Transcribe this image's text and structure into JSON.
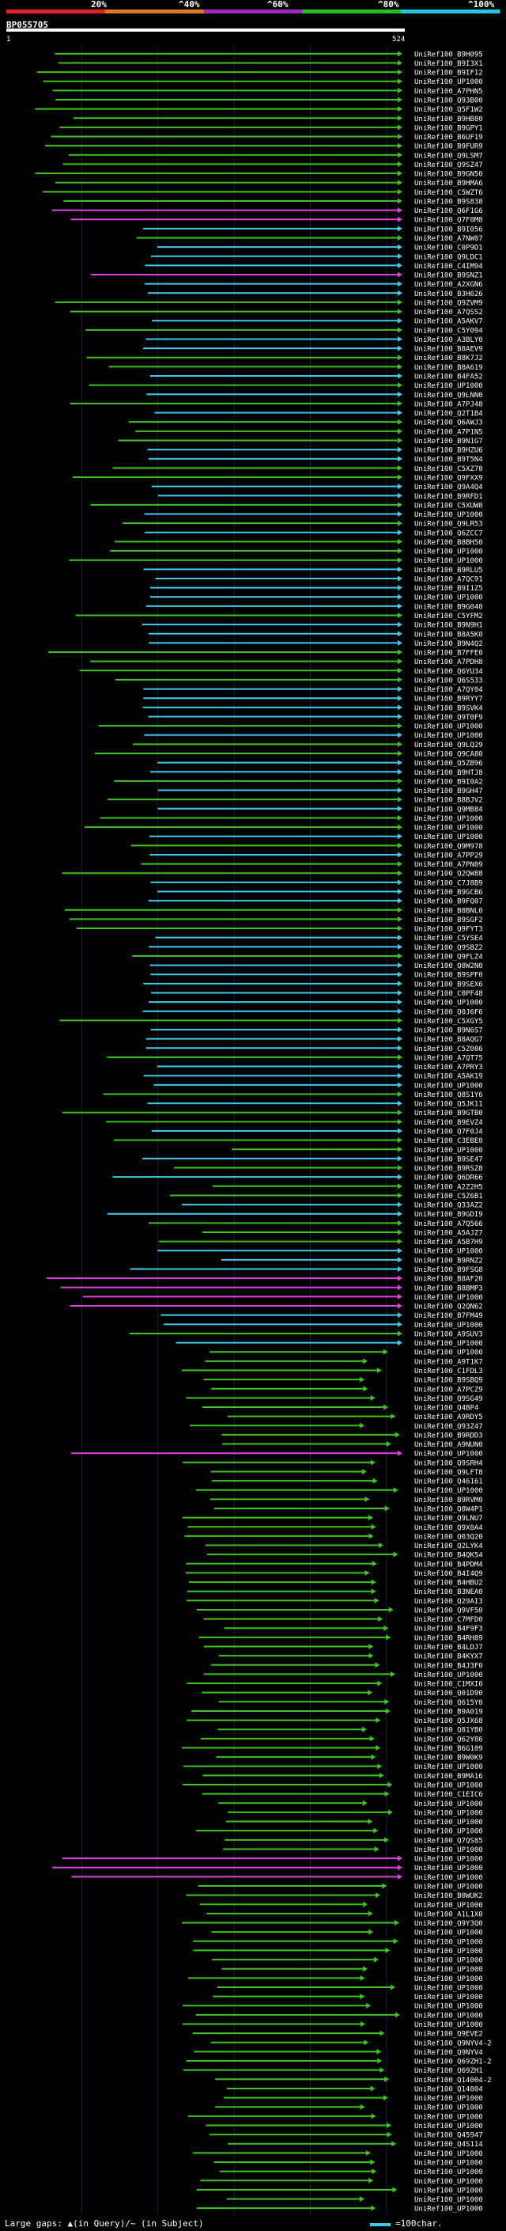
{
  "colors": {
    "background": "#000000",
    "grid": "#1a2040",
    "band_red": "#e8202a",
    "band_orange": "#e07a20",
    "band_purple": "#9a2ab8",
    "band_green": "#20c020",
    "band_cyan": "#20c8e0",
    "hit_green": "#3ec41e",
    "hit_cyan": "#3ccbe8",
    "hit_magenta": "#e040e0",
    "query_bar": "#ffffff",
    "text": "#ffffff"
  },
  "header": {
    "labels": [
      "20%",
      "^40%",
      "^60%",
      "^80%",
      "^100%"
    ],
    "query_id": "BP055705",
    "query_start": "1",
    "query_end": "524"
  },
  "legend": {
    "text": "Large gaps: ▲(in Query)/~ (in Subject)",
    "scale_label": "=100char."
  },
  "chart_data": {
    "type": "alignment-overview",
    "title": "BP055705",
    "x_range": [
      1,
      524
    ],
    "identity_bands": [
      "20%",
      "40%",
      "60%",
      "80%",
      "100%"
    ],
    "hit_labels": [
      "UniRef100_B9H095",
      "UniRef100_B9I3X1",
      "UniRef100_B9IF12",
      "UniRef100_UP1000",
      "UniRef100_A7PHN5",
      "UniRef100_Q93B00",
      "UniRef100_Q5F1W2",
      "UniRef100_B9HB80",
      "UniRef100_B9GPY1",
      "UniRef100_B6UF19",
      "UniRef100_B9FUR9",
      "UniRef100_Q9LSM7",
      "UniRef100_Q9SZ47",
      "UniRef100_B9GN50",
      "UniRef100_B9HMA6",
      "UniRef100_C5WZT6",
      "UniRef100_B9S838",
      "UniRef100_Q6F1G6",
      "UniRef100_Q7F0M8",
      "UniRef100_B9I056",
      "UniRef100_A7NW07",
      "UniRef100_C0P9D1",
      "UniRef100_Q9LDC1",
      "UniRef100_C4IM94",
      "UniRef100_B9SNZ1",
      "UniRef100_A2XGN6",
      "UniRef100_B3H626",
      "UniRef100_Q9ZVM9",
      "UniRef100_A7QSS2",
      "UniRef100_A5AKV7",
      "UniRef100_C5Y094",
      "UniRef100_A3BLY0",
      "UniRef100_B8AEV9",
      "UniRef100_B8K7J2",
      "UniRef100_B8A619",
      "UniRef100_B4FA52",
      "UniRef100_UP1000",
      "UniRef100_Q9LNN0",
      "UniRef100_A7PJ48",
      "UniRef100_Q2T1B4",
      "UniRef100_Q6AWJ3",
      "UniRef100_A7P1N5",
      "UniRef100_B9N1G7",
      "UniRef100_B9HZU6",
      "UniRef100_B9T5N4",
      "UniRef100_C5XZ78",
      "UniRef100_Q9FXX9",
      "UniRef100_Q9A4Q4",
      "UniRef100_B9RFD1",
      "UniRef100_C5XUW8",
      "UniRef100_UP1000",
      "UniRef100_Q9LR53",
      "UniRef100_Q6ZCC7",
      "UniRef100_B8BH50",
      "UniRef100_UP1000",
      "UniRef100_UP1000",
      "UniRef100_B9RLU5",
      "UniRef100_A7QC91",
      "UniRef100_B9I1Z5",
      "UniRef100_UP1000",
      "UniRef100_B9G040",
      "UniRef100_C5YFM2",
      "UniRef100_B9N9H1",
      "UniRef100_B8A5K0",
      "UniRef100_B9N4Q2",
      "UniRef100_B7FFE0",
      "UniRef100_A7PDH8",
      "UniRef100_Q6YU34",
      "UniRef100_Q6S533",
      "UniRef100_A7QY04",
      "UniRef100_B9RYY7",
      "UniRef100_B9SVK4",
      "UniRef100_Q9T0F9",
      "UniRef100_UP1000",
      "UniRef100_UP1000",
      "UniRef100_Q9LQ29",
      "UniRef100_Q9CA80",
      "UniRef100_Q5ZB96",
      "UniRef100_B9HTJ8",
      "UniRef100_B9I0A2",
      "UniRef100_B9GH47",
      "UniRef100_B8BJV2",
      "UniRef100_Q9MB84",
      "UniRef100_UP1000",
      "UniRef100_UP1000",
      "UniRef100_UP1000",
      "UniRef100_Q9M978",
      "UniRef100_A7PP29",
      "UniRef100_A7PN09",
      "UniRef100_Q2QW88",
      "UniRef100_C7J8B9",
      "UniRef100_B9GCB6",
      "UniRef100_B9FQ07",
      "UniRef100_B8BNL0",
      "UniRef100_B9SGF2",
      "UniRef100_Q9FYT3",
      "UniRef100_C5YSE4",
      "UniRef100_Q9SBZ2",
      "UniRef100_Q9FLZ4",
      "UniRef100_Q8W2N0",
      "UniRef100_B9SPF0",
      "UniRef100_B9SEX6",
      "UniRef100_C0PF48",
      "UniRef100_UP1000",
      "UniRef100_Q0J6F6",
      "UniRef100_C5XGY5",
      "UniRef100_B9N6S7",
      "UniRef100_B8AQG7",
      "UniRef100_C5Z086",
      "UniRef100_A7QT75",
      "UniRef100_A7PRY3",
      "UniRef100_A5AK19",
      "UniRef100_UP1000",
      "UniRef100_Q8S1Y6",
      "UniRef100_Q5JK11",
      "UniRef100_B9GTB0",
      "UniRef100_B9EVZ4",
      "UniRef100_Q7F0J4",
      "UniRef100_C3EBE0",
      "UniRef100_UP1000",
      "UniRef100_B9SE47",
      "UniRef100_B9RSZ8",
      "UniRef100_Q6DR66",
      "UniRef100_A2Z2H5",
      "UniRef100_C5Z6B1",
      "UniRef100_Q33AZ2",
      "UniRef100_B9GDI9",
      "UniRef100_A7Q566",
      "UniRef100_A5AJZ7",
      "UniRef100_A5B7H9",
      "UniRef100_UP1000",
      "UniRef100_B9RNZ2",
      "UniRef100_B9FSG8",
      "UniRef100_B8AF20",
      "UniRef100_B8BMP3",
      "UniRef100_UP1000",
      "UniRef100_Q2QN62",
      "UniRef100_B7FM49",
      "UniRef100_UP1000",
      "UniRef100_A9SUV3",
      "UniRef100_UP1000",
      "UniRef100_UP1000",
      "UniRef100_A9T1K7",
      "UniRef100_C1FDL3",
      "UniRef100_B9SBQ9",
      "UniRef100_A7PCZ9",
      "UniRef100_Q9SG49",
      "UniRef100_Q4BP4",
      "UniRef100_A9RDY5",
      "UniRef100_Q93Z47",
      "UniRef100_B9RDD3",
      "UniRef100_A9NUN0",
      "UniRef100_UP1000",
      "UniRef100_Q9SRH4",
      "UniRef100_Q9LFT8",
      "UniRef100_Q46161",
      "UniRef100_UP1000",
      "UniRef100_B9RVM0",
      "UniRef100_Q8W4P1",
      "UniRef100_Q9LNU7",
      "UniRef100_Q9X0A4",
      "UniRef100_Q03Q20",
      "UniRef100_Q2LYK4",
      "UniRef100_B4QK54",
      "UniRef100_B4PDM4",
      "UniRef100_B4I4Q9",
      "UniRef100_B4HBU2",
      "UniRef100_B3NEA0",
      "UniRef100_Q29AI3",
      "UniRef100_Q9VF50",
      "UniRef100_C7MFD0",
      "UniRef100_B4F9F3",
      "UniRef100_B4RH89",
      "UniRef100_B4LDJ7",
      "UniRef100_B4KYX7",
      "UniRef100_B4J3F0",
      "UniRef100_UP1000",
      "UniRef100_C1MXI0",
      "UniRef100_Q01D90",
      "UniRef100_Q615Y0",
      "UniRef100_B9A019",
      "UniRef100_Q5JX68",
      "UniRef100_Q81YB0",
      "UniRef100_Q62Y86",
      "UniRef100_B6G109",
      "UniRef100_B9W0K9",
      "UniRef100_UP1000",
      "UniRef100_B9MA16",
      "UniRef100_UP1000",
      "UniRef100_C1EIC6",
      "UniRef100_UP1000",
      "UniRef100_UP1000",
      "UniRef100_UP1000",
      "UniRef100_UP1000",
      "UniRef100_Q7QS85",
      "UniRef100_UP1000",
      "UniRef100_UP1000",
      "UniRef100_UP1000",
      "UniRef100_UP1000",
      "UniRef100_UP1000",
      "UniRef100_B0WUK2",
      "UniRef100_UP1000",
      "UniRef100_A1L1X0",
      "UniRef100_Q9Y3Q0",
      "UniRef100_UP1000",
      "UniRef100_UP1000",
      "UniRef100_UP1000",
      "UniRef100_UP1000",
      "UniRef100_UP1000",
      "UniRef100_UP1000",
      "UniRef100_UP1000",
      "UniRef100_UP1000",
      "UniRef100_UP1000",
      "UniRef100_UP1000",
      "UniRef100_UP1000",
      "UniRef100_Q9EVE2",
      "UniRef100_Q9NYV4-2",
      "UniRef100_Q9NYV4",
      "UniRef100_Q69ZH1-2",
      "UniRef100_Q69ZH1",
      "UniRef100_Q14004-2",
      "UniRef100_Q14004",
      "UniRef100_UP1000",
      "UniRef100_UP1000",
      "UniRef100_UP1000",
      "UniRef100_UP1000",
      "UniRef100_Q45947",
      "UniRef100_Q4S114",
      "UniRef100_UP1000",
      "UniRef100_UP1000",
      "UniRef100_UP1000",
      "UniRef100_UP1000",
      "UniRef100_UP1000",
      "UniRef100_UP1000",
      "UniRef100_UP1000"
    ]
  }
}
